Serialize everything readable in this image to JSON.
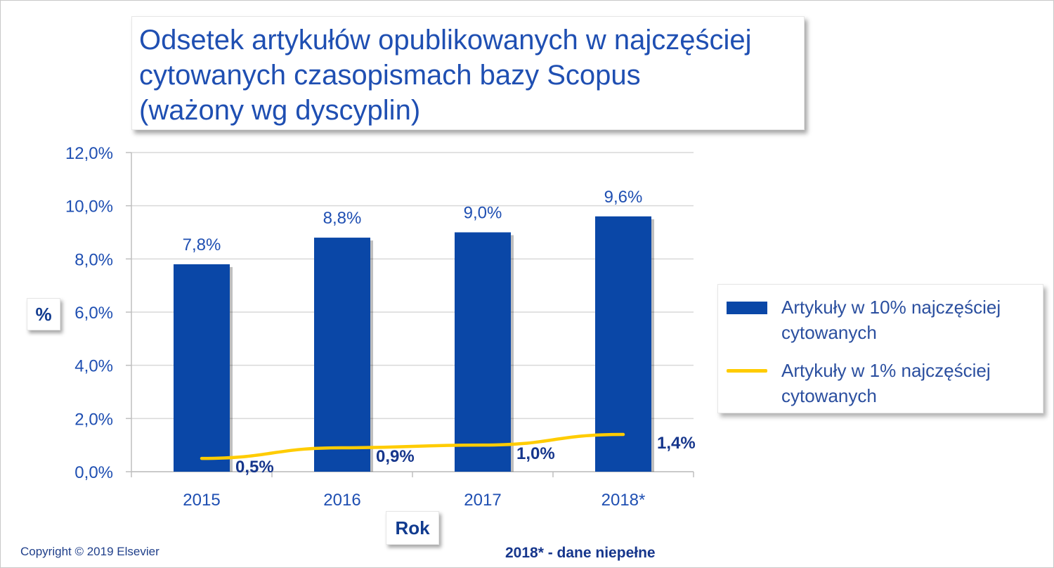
{
  "title": "Odsetek artykułów opublikowanych w najczęściej\ncytowanych czasopismach bazy Scopus\n(ważony wg dyscyplin)",
  "chart_data": {
    "type": "bar",
    "categories": [
      "2015",
      "2016",
      "2017",
      "2018*"
    ],
    "series": [
      {
        "name": "Artykuły w 10% najczęściej cytowanych",
        "kind": "bar",
        "values": [
          7.8,
          8.8,
          9.0,
          9.6
        ],
        "labels": [
          "7,8%",
          "8,8%",
          "9,0%",
          "9,6%"
        ],
        "color": "#0a47a7"
      },
      {
        "name": "Artykuły w 1% najczęściej cytowanych",
        "kind": "line",
        "values": [
          0.5,
          0.9,
          1.0,
          1.4
        ],
        "labels": [
          "0,5%",
          "0,9%",
          "1,0%",
          "1,4%"
        ],
        "color": "#ffcc00"
      }
    ],
    "xlabel": "Rok",
    "ylabel": "%",
    "ylim": [
      0,
      12
    ],
    "yticks": [
      "0,0%",
      "2,0%",
      "4,0%",
      "6,0%",
      "8,0%",
      "10,0%",
      "12,0%"
    ],
    "grid": true,
    "legend": "right"
  },
  "legend": {
    "bars_label": "Artykuły w 10% najczęściej cytowanych",
    "line_label": "Artykuły w 1% najczęściej cytowanych"
  },
  "copyright": "Copyright © 2019 Elsevier",
  "footnote": "2018* - dane niepełne",
  "colors": {
    "title": "#1f4fb2",
    "bar": "#0a47a7",
    "line": "#ffcc00",
    "axis_text": "#1f4fb2",
    "data_label_line": "#16368c"
  }
}
